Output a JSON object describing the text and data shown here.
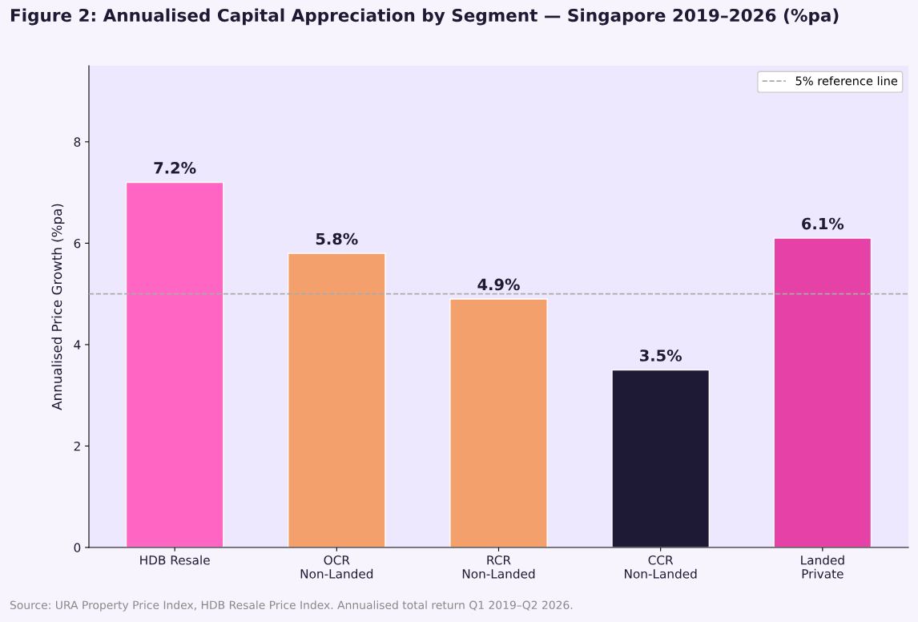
{
  "chart_data": {
    "type": "bar",
    "title": "Figure 2: Annualised Capital Appreciation by Segment — Singapore 2019–2026 (%pa)",
    "ylabel": "Annualised Price Growth (%pa)",
    "categories": [
      "HDB Resale",
      "OCR\nNon-Landed",
      "RCR\nNon-Landed",
      "CCR\nNon-Landed",
      "Landed\nPrivate"
    ],
    "values": [
      7.2,
      5.8,
      4.9,
      3.5,
      6.1
    ],
    "colors": [
      "#ff66c4",
      "#f4a06c",
      "#f4a06c",
      "#1e1934",
      "#e541a6"
    ],
    "value_labels": [
      "7.2%",
      "5.8%",
      "4.9%",
      "3.5%",
      "6.1%"
    ],
    "ylim": [
      0,
      9.5
    ],
    "yticks": [
      0,
      2,
      4,
      6,
      8
    ],
    "ref_lines": [
      {
        "axis": "y",
        "value": 5,
        "label": "5% reference line",
        "color": "#aaaaaa",
        "line_style": "dashed"
      }
    ],
    "legend": "top right",
    "grid": false,
    "annotations": [
      "Source: URA Property Price Index, HDB Resale Price Index. Annualised total return Q1 2019–Q2 2026."
    ]
  }
}
